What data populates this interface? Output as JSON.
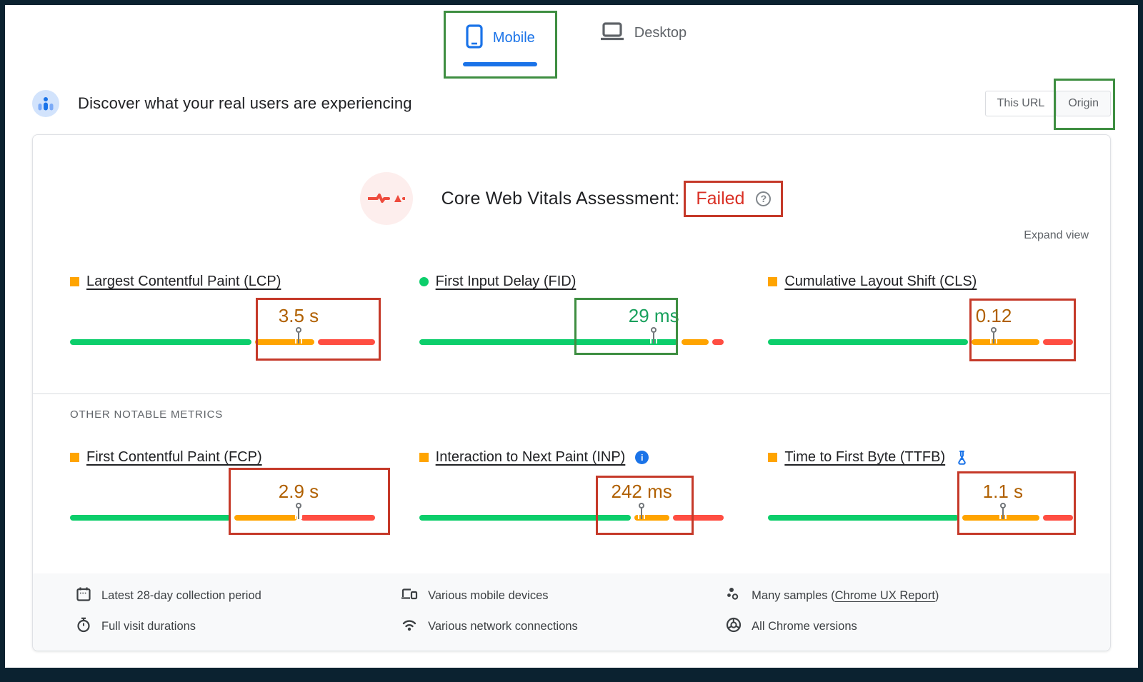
{
  "colors": {
    "good": "#0cce6b",
    "ni": "#ffa400",
    "poor": "#ff4e42",
    "val-ni": "#b06000",
    "val-good": "#18a05c",
    "blue": "#1a73e8",
    "red-text": "#d93025",
    "anno-red": "#c53929",
    "anno-green": "#3e8e41"
  },
  "tabs": {
    "mobile": "Mobile",
    "desktop": "Desktop"
  },
  "field_header": {
    "title": "Discover what your real users are experiencing",
    "this_url_label": "This URL",
    "origin_label": "Origin"
  },
  "assessment": {
    "title": "Core Web Vitals Assessment:",
    "result": "Failed",
    "help_glyph": "?",
    "expand_view_label": "Expand view",
    "other_metrics_label": "OTHER NOTABLE METRICS"
  },
  "metrics": [
    {
      "id": "lcp",
      "title": "Largest Contentful Paint (LCP)",
      "value": "3.5 s",
      "status": "ni",
      "marker": "square",
      "pin_pct": 75,
      "annotation": "red",
      "segments": [
        {
          "status": "good",
          "pct": 61
        },
        {
          "status": "ni",
          "pct": 20
        },
        {
          "status": "poor",
          "pct": 19
        }
      ]
    },
    {
      "id": "fid",
      "title": "First Input Delay (FID)",
      "value": "29 ms",
      "status": "good",
      "marker": "circle",
      "pin_pct": 77,
      "annotation": "green",
      "segments": [
        {
          "status": "good",
          "pct": 87
        },
        {
          "status": "ni",
          "pct": 9
        },
        {
          "status": "poor",
          "pct": 4
        }
      ]
    },
    {
      "id": "cls",
      "title": "Cumulative Layout Shift (CLS)",
      "value": "0.12",
      "status": "ni",
      "marker": "square",
      "pin_pct": 74,
      "annotation": "red",
      "segments": [
        {
          "status": "good",
          "pct": 67
        },
        {
          "status": "ni",
          "pct": 23
        },
        {
          "status": "poor",
          "pct": 10
        }
      ]
    },
    {
      "id": "fcp",
      "title": "First Contentful Paint (FCP)",
      "value": "2.9 s",
      "status": "ni",
      "marker": "square",
      "pin_pct": 75,
      "annotation": "red",
      "extra": "none",
      "segments": [
        {
          "status": "good",
          "pct": 54
        },
        {
          "status": "ni",
          "pct": 21
        },
        {
          "status": "poor",
          "pct": 25
        }
      ]
    },
    {
      "id": "inp",
      "title": "Interaction to Next Paint (INP)",
      "value": "242 ms",
      "status": "ni",
      "marker": "square",
      "pin_pct": 73,
      "annotation": "red",
      "extra": "info",
      "info_glyph": "i",
      "segments": [
        {
          "status": "good",
          "pct": 71
        },
        {
          "status": "ni",
          "pct": 12
        },
        {
          "status": "poor",
          "pct": 17
        }
      ]
    },
    {
      "id": "ttfb",
      "title": "Time to First Byte (TTFB)",
      "value": "1.1 s",
      "status": "ni",
      "marker": "square",
      "pin_pct": 77,
      "annotation": "red",
      "extra": "flask",
      "segments": [
        {
          "status": "good",
          "pct": 64
        },
        {
          "status": "ni",
          "pct": 26
        },
        {
          "status": "poor",
          "pct": 10
        }
      ]
    }
  ],
  "footer": {
    "collection_period": "Latest 28-day collection period",
    "visit_durations": "Full visit durations",
    "devices": "Various mobile devices",
    "connections": "Various network connections",
    "samples_prefix": "Many samples (",
    "samples_link": "Chrome UX Report",
    "samples_suffix": ")",
    "chrome_versions": "All Chrome versions"
  }
}
